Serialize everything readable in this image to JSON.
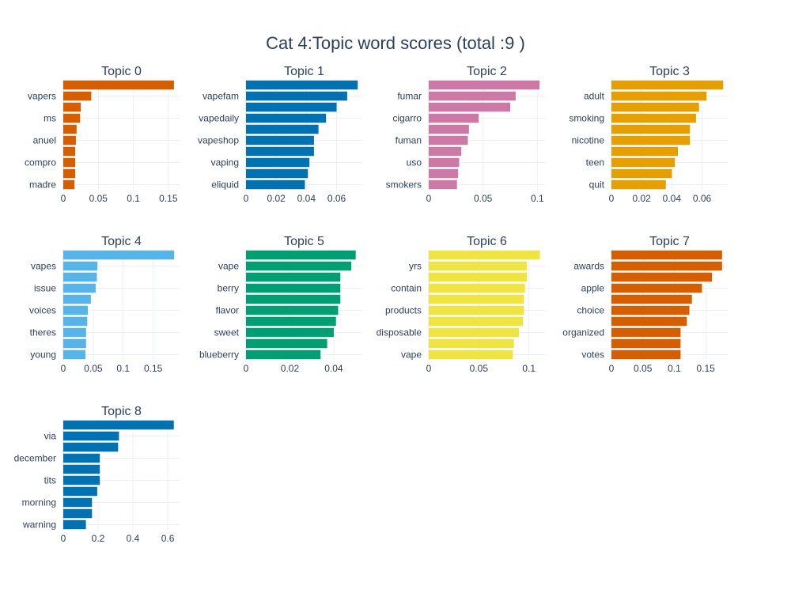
{
  "title": "Cat 4:Topic word scores (total :9 )",
  "chart_data": [
    {
      "type": "bar",
      "orientation": "horizontal",
      "title": "Topic 0",
      "color": "#D55E00",
      "categories": [
        "",
        "vapers",
        "",
        "ms",
        "",
        "anuel",
        "",
        "compro",
        "",
        "madre"
      ],
      "values": [
        0.158,
        0.04,
        0.025,
        0.024,
        0.019,
        0.018,
        0.017,
        0.017,
        0.017,
        0.016
      ],
      "xlim": [
        0,
        0.166
      ],
      "xticks": [
        0,
        0.05,
        0.1,
        0.15
      ],
      "xtick_labels": [
        "0",
        "0.05",
        "0.1",
        "0.15"
      ]
    },
    {
      "type": "bar",
      "orientation": "horizontal",
      "title": "Topic 1",
      "color": "#0072B2",
      "categories": [
        "",
        "vapefam",
        "",
        "vapedaily",
        "",
        "vapeshop",
        "",
        "vaping",
        "",
        "eliquid"
      ],
      "values": [
        0.074,
        0.067,
        0.06,
        0.053,
        0.048,
        0.045,
        0.045,
        0.042,
        0.041,
        0.039
      ],
      "xlim": [
        0,
        0.077
      ],
      "xticks": [
        0,
        0.02,
        0.04,
        0.06
      ],
      "xtick_labels": [
        "0",
        "0.02",
        "0.04",
        "0.06"
      ]
    },
    {
      "type": "bar",
      "orientation": "horizontal",
      "title": "Topic 2",
      "color": "#CC79A7",
      "categories": [
        "",
        "fumar",
        "",
        "cigarro",
        "",
        "fuman",
        "",
        "uso",
        "",
        "smokers"
      ],
      "values": [
        0.102,
        0.08,
        0.075,
        0.046,
        0.037,
        0.036,
        0.03,
        0.028,
        0.027,
        0.026
      ],
      "xlim": [
        0,
        0.107
      ],
      "xticks": [
        0,
        0.05,
        0.1
      ],
      "xtick_labels": [
        "0",
        "0.05",
        "0.1"
      ]
    },
    {
      "type": "bar",
      "orientation": "horizontal",
      "title": "Topic 3",
      "color": "#E69F00",
      "categories": [
        "",
        "adult",
        "",
        "smoking",
        "",
        "nicotine",
        "",
        "teen",
        "",
        "quit"
      ],
      "values": [
        0.074,
        0.063,
        0.058,
        0.056,
        0.052,
        0.052,
        0.044,
        0.042,
        0.04,
        0.036
      ],
      "xlim": [
        0,
        0.077
      ],
      "xticks": [
        0,
        0.02,
        0.04,
        0.06
      ],
      "xtick_labels": [
        "0",
        "0.02",
        "0.04",
        "0.06"
      ]
    },
    {
      "type": "bar",
      "orientation": "horizontal",
      "title": "Topic 4",
      "color": "#56B4E9",
      "categories": [
        "",
        "vapes",
        "",
        "issue",
        "",
        "voices",
        "",
        "theres",
        "",
        "young"
      ],
      "values": [
        0.185,
        0.057,
        0.056,
        0.054,
        0.046,
        0.041,
        0.04,
        0.038,
        0.038,
        0.037
      ],
      "xlim": [
        0,
        0.194
      ],
      "xticks": [
        0,
        0.05,
        0.1,
        0.15
      ],
      "xtick_labels": [
        "0",
        "0.05",
        "0.1",
        "0.15"
      ]
    },
    {
      "type": "bar",
      "orientation": "horizontal",
      "title": "Topic 5",
      "color": "#009E73",
      "categories": [
        "",
        "vape",
        "",
        "berry",
        "",
        "flavor",
        "",
        "sweet",
        "",
        "blueberry"
      ],
      "values": [
        0.05,
        0.048,
        0.043,
        0.043,
        0.043,
        0.042,
        0.041,
        0.04,
        0.037,
        0.034
      ],
      "xlim": [
        0,
        0.053
      ],
      "xticks": [
        0,
        0.02,
        0.04
      ],
      "xtick_labels": [
        "0",
        "0.02",
        "0.04"
      ]
    },
    {
      "type": "bar",
      "orientation": "horizontal",
      "title": "Topic 6",
      "color": "#F0E442",
      "categories": [
        "",
        "yrs",
        "",
        "contain",
        "",
        "products",
        "",
        "disposable",
        "",
        "vape"
      ],
      "values": [
        0.111,
        0.098,
        0.098,
        0.096,
        0.095,
        0.095,
        0.094,
        0.09,
        0.085,
        0.084
      ],
      "xlim": [
        0,
        0.116
      ],
      "xticks": [
        0,
        0.05,
        0.1
      ],
      "xtick_labels": [
        "0",
        "0.05",
        "0.1"
      ]
    },
    {
      "type": "bar",
      "orientation": "horizontal",
      "title": "Topic 7",
      "color": "#D55E00",
      "categories": [
        "",
        "awards",
        "",
        "apple",
        "",
        "choice",
        "",
        "organized",
        "",
        "votes"
      ],
      "values": [
        0.176,
        0.176,
        0.16,
        0.144,
        0.128,
        0.124,
        0.12,
        0.11,
        0.11,
        0.11
      ],
      "xlim": [
        0,
        0.185
      ],
      "xticks": [
        0,
        0.05,
        0.1,
        0.15
      ],
      "xtick_labels": [
        "0",
        "0.05",
        "0.1",
        "0.15"
      ]
    },
    {
      "type": "bar",
      "orientation": "horizontal",
      "title": "Topic 8",
      "color": "#0072B2",
      "categories": [
        "",
        "via",
        "",
        "december",
        "",
        "tits",
        "",
        "morning",
        "",
        "warning"
      ],
      "values": [
        0.635,
        0.32,
        0.315,
        0.21,
        0.21,
        0.21,
        0.195,
        0.165,
        0.165,
        0.13
      ],
      "xlim": [
        0,
        0.668
      ],
      "xticks": [
        0,
        0.2,
        0.4,
        0.6
      ],
      "xtick_labels": [
        "0",
        "0.2",
        "0.4",
        "0.6"
      ]
    }
  ]
}
